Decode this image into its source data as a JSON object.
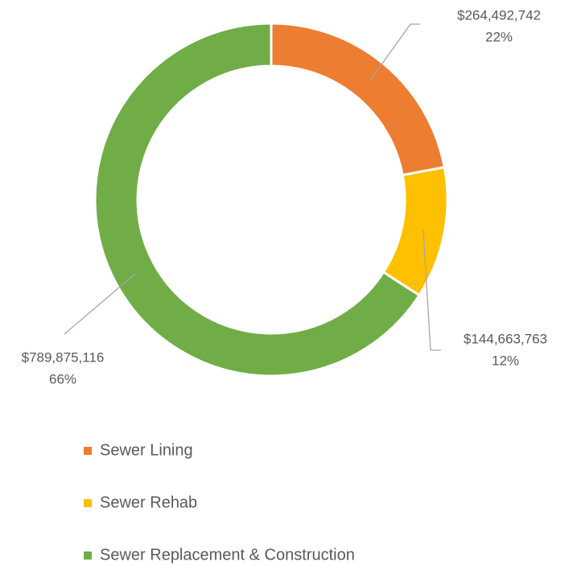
{
  "chart_data": {
    "type": "donut",
    "categories": [
      "Sewer Lining",
      "Sewer Rehab",
      "Sewer Replacement & Construction"
    ],
    "values": [
      264492742,
      144663763,
      789875116
    ],
    "value_labels": [
      "$264,492,742",
      "$144,663,763",
      "$789,875,116"
    ],
    "percents": [
      22,
      12,
      66
    ],
    "percent_labels": [
      "22%",
      "12%",
      "66%"
    ],
    "colors": [
      "#ED7D31",
      "#FFC000",
      "#70AD47"
    ],
    "legend": "bottom"
  }
}
